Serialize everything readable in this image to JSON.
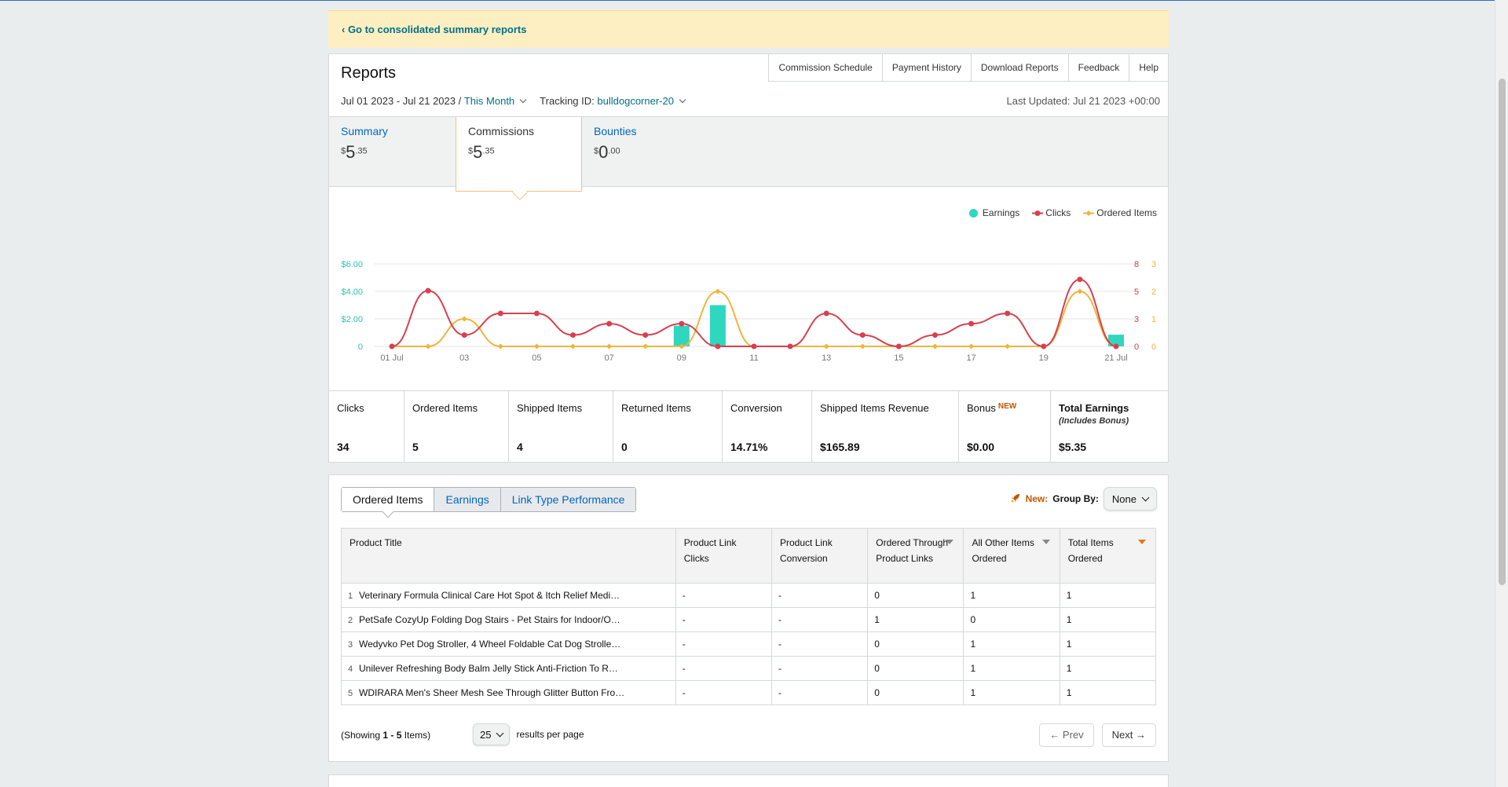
{
  "banner": {
    "link": "‹ Go to consolidated summary reports"
  },
  "reports": {
    "title": "Reports",
    "links": [
      "Commission Schedule",
      "Payment History",
      "Download Reports",
      "Feedback",
      "Help"
    ],
    "date_range": "Jul 01 2023 - Jul 21 2023 /",
    "period": "This Month",
    "tracking_label": "Tracking ID:",
    "tracking_id": "bulldogcorner-20",
    "last_updated": "Last Updated: Jul 21 2023 +00:00"
  },
  "summary_tabs": [
    {
      "label": "Summary",
      "currency": "$",
      "whole": "5",
      "cents": ".35"
    },
    {
      "label": "Commissions",
      "currency": "$",
      "whole": "5",
      "cents": ".35"
    },
    {
      "label": "Bounties",
      "currency": "$",
      "whole": "0",
      "cents": ".00"
    }
  ],
  "legend": {
    "earnings": "Earnings",
    "clicks": "Clicks",
    "ordered": "Ordered Items"
  },
  "colors": {
    "earnings": "#2ed7be",
    "clicks": "#d6404f",
    "ordered": "#f0b43c",
    "link": "#007185",
    "accent": "#c45500"
  },
  "chart_data": {
    "type": "line",
    "x": [
      "01 Jul",
      "02",
      "03",
      "04",
      "05",
      "06",
      "07",
      "08",
      "09",
      "10",
      "11",
      "12",
      "13",
      "14",
      "15",
      "16",
      "17",
      "18",
      "19",
      "20",
      "21 Jul"
    ],
    "x_tick_labels": [
      "01 Jul",
      "03",
      "05",
      "07",
      "09",
      "11",
      "13",
      "15",
      "17",
      "19",
      "21 Jul"
    ],
    "earnings_axis": {
      "ticks": [
        "0",
        "$2.00",
        "$4.00",
        "$6.00"
      ],
      "range": [
        0,
        6
      ]
    },
    "clicks_axis": {
      "ticks": [
        "0",
        "3",
        "5",
        "8"
      ],
      "range": [
        0,
        8
      ]
    },
    "ordered_axis": {
      "ticks": [
        "0",
        "1",
        "2",
        "3"
      ],
      "range": [
        0,
        3
      ]
    },
    "series": [
      {
        "name": "Earnings",
        "kind": "bar",
        "values": [
          0,
          0,
          0,
          0,
          0,
          0,
          0,
          0,
          1.5,
          3.0,
          0,
          0,
          0,
          0,
          0,
          0,
          0,
          0,
          0,
          0,
          0.85
        ]
      },
      {
        "name": "Clicks",
        "kind": "line",
        "values": [
          0,
          5.4,
          1.1,
          3.2,
          3.2,
          1.1,
          2.2,
          1.1,
          2.2,
          0,
          0,
          0,
          3.2,
          1.1,
          0,
          1.1,
          2.2,
          3.2,
          0,
          6.5,
          0
        ]
      },
      {
        "name": "Ordered Items",
        "kind": "line",
        "values": [
          0,
          0,
          1,
          0,
          0,
          0,
          0,
          0,
          0,
          2,
          0,
          0,
          0,
          0,
          0,
          0,
          0,
          0,
          0,
          2,
          0
        ]
      }
    ],
    "grid": true,
    "legend_position": "top-right"
  },
  "metrics": [
    {
      "label": "Clicks",
      "value": "34"
    },
    {
      "label": "Ordered Items",
      "value": "5"
    },
    {
      "label": "Shipped Items",
      "value": "4"
    },
    {
      "label": "Returned Items",
      "value": "0"
    },
    {
      "label": "Conversion",
      "value": "14.71%"
    },
    {
      "label": "Shipped Items Revenue",
      "value": "$165.89"
    },
    {
      "label": "Bonus",
      "badge": "NEW",
      "value": "$0.00"
    },
    {
      "label": "Total Earnings",
      "sub": "(Includes Bonus)",
      "value": "$5.35"
    }
  ],
  "detail_tabs": [
    "Ordered Items",
    "Earnings",
    "Link Type Performance"
  ],
  "group_by": {
    "new": "New:",
    "label": "Group By:",
    "value": "None"
  },
  "table": {
    "headers": [
      "Product Title",
      "Product Link Clicks",
      "Product Link Conversion",
      "Ordered Through Product Links",
      "All Other Items Ordered",
      "Total Items Ordered"
    ],
    "rows": [
      {
        "n": "1",
        "title": "Veterinary Formula Clinical Care Hot Spot & Itch Relief Medi…",
        "clicks": "-",
        "conv": "-",
        "through": "0",
        "other": "1",
        "total": "1"
      },
      {
        "n": "2",
        "title": "PetSafe CozyUp Folding Dog Stairs - Pet Stairs for Indoor/O…",
        "clicks": "-",
        "conv": "-",
        "through": "1",
        "other": "0",
        "total": "1"
      },
      {
        "n": "3",
        "title": "Wedyvko Pet Dog Stroller, 4 Wheel Foldable Cat Dog Strolle…",
        "clicks": "-",
        "conv": "-",
        "through": "0",
        "other": "1",
        "total": "1"
      },
      {
        "n": "4",
        "title": "Unilever Refreshing Body Balm Jelly Stick Anti-Friction To R…",
        "clicks": "-",
        "conv": "-",
        "through": "0",
        "other": "1",
        "total": "1"
      },
      {
        "n": "5",
        "title": "WDIRARA Men's Sheer Mesh See Through Glitter Button Fro…",
        "clicks": "-",
        "conv": "-",
        "through": "0",
        "other": "1",
        "total": "1"
      }
    ]
  },
  "pagination": {
    "showing_prefix": "(Showing ",
    "showing_range": "1 - 5",
    "showing_suffix": " Items)",
    "per_page_value": "25",
    "per_page_label": "results per page",
    "prev": "← Prev",
    "next": "Next →"
  }
}
